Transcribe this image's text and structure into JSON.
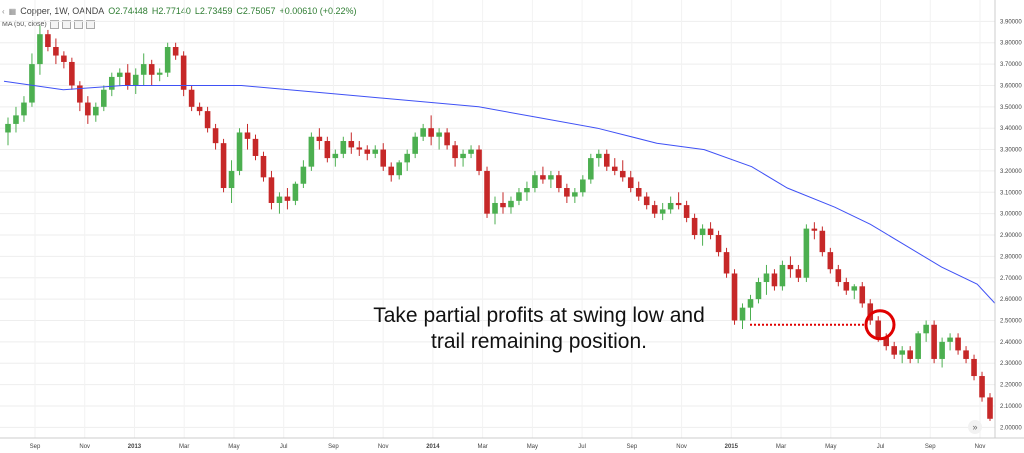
{
  "header": {
    "symbol": "Copper, 1W, OANDA",
    "open": "O2.74448",
    "high": "H2.77140",
    "low": "L2.73459",
    "close": "C2.75057",
    "change": "+0.00610 (+0.22%)",
    "ma_label": "MA (50, close)"
  },
  "annotation": {
    "line1": "Take partial profits at swing low and",
    "line2": "trail remaining position."
  },
  "colors": {
    "up": "#4caf50",
    "down": "#c62828",
    "ma": "#3f51f5",
    "annotation": "#e00000"
  },
  "chart_data": {
    "type": "candlestick",
    "title": "Copper, 1W, OANDA",
    "ylim": [
      1.95,
      4.0
    ],
    "y_ticks": [
      "3.90000",
      "3.80000",
      "3.70000",
      "3.60000",
      "3.50000",
      "3.40000",
      "3.30000",
      "3.20000",
      "3.10000",
      "3.00000",
      "2.90000",
      "2.80000",
      "2.70000",
      "2.60000",
      "2.50000",
      "2.40000",
      "2.30000",
      "2.20000",
      "2.10000",
      "2.00000"
    ],
    "x_ticks": [
      "Sep",
      "Nov",
      "2013",
      "Mar",
      "May",
      "Jul",
      "Sep",
      "Nov",
      "2014",
      "Mar",
      "May",
      "Jul",
      "Sep",
      "Nov",
      "2015",
      "Mar",
      "May",
      "Jul",
      "Sep",
      "Nov"
    ],
    "ma_series": {
      "name": "MA (50, close)",
      "points": [
        [
          0,
          3.62
        ],
        [
          10,
          3.58
        ],
        [
          20,
          3.6
        ],
        [
          40,
          3.6
        ],
        [
          60,
          3.55
        ],
        [
          80,
          3.5
        ],
        [
          90,
          3.45
        ],
        [
          100,
          3.4
        ],
        [
          110,
          3.33
        ],
        [
          118,
          3.3
        ],
        [
          126,
          3.22
        ],
        [
          132,
          3.12
        ],
        [
          140,
          3.03
        ],
        [
          146,
          2.95
        ],
        [
          152,
          2.85
        ],
        [
          158,
          2.75
        ],
        [
          164,
          2.67
        ],
        [
          167,
          2.58
        ]
      ]
    },
    "annotations": [
      {
        "text": "Take partial profits at swing low and trail remaining position.",
        "level": 2.48
      }
    ],
    "swing_low": 2.48,
    "candles": [
      [
        3.38,
        3.45,
        3.32,
        3.42
      ],
      [
        3.42,
        3.5,
        3.38,
        3.46
      ],
      [
        3.46,
        3.55,
        3.43,
        3.52
      ],
      [
        3.52,
        3.75,
        3.5,
        3.7
      ],
      [
        3.7,
        3.88,
        3.65,
        3.84
      ],
      [
        3.84,
        3.86,
        3.76,
        3.78
      ],
      [
        3.78,
        3.82,
        3.7,
        3.74
      ],
      [
        3.74,
        3.76,
        3.68,
        3.71
      ],
      [
        3.71,
        3.73,
        3.58,
        3.6
      ],
      [
        3.6,
        3.62,
        3.48,
        3.52
      ],
      [
        3.52,
        3.55,
        3.42,
        3.46
      ],
      [
        3.46,
        3.52,
        3.43,
        3.5
      ],
      [
        3.5,
        3.6,
        3.48,
        3.58
      ],
      [
        3.58,
        3.66,
        3.55,
        3.64
      ],
      [
        3.64,
        3.68,
        3.6,
        3.66
      ],
      [
        3.66,
        3.7,
        3.58,
        3.6
      ],
      [
        3.6,
        3.68,
        3.56,
        3.65
      ],
      [
        3.65,
        3.75,
        3.6,
        3.7
      ],
      [
        3.7,
        3.72,
        3.6,
        3.65
      ],
      [
        3.65,
        3.68,
        3.62,
        3.66
      ],
      [
        3.66,
        3.8,
        3.64,
        3.78
      ],
      [
        3.78,
        3.8,
        3.72,
        3.74
      ],
      [
        3.74,
        3.76,
        3.55,
        3.58
      ],
      [
        3.58,
        3.6,
        3.48,
        3.5
      ],
      [
        3.5,
        3.52,
        3.46,
        3.48
      ],
      [
        3.48,
        3.5,
        3.38,
        3.4
      ],
      [
        3.4,
        3.42,
        3.3,
        3.33
      ],
      [
        3.33,
        3.35,
        3.1,
        3.12
      ],
      [
        3.12,
        3.25,
        3.05,
        3.2
      ],
      [
        3.2,
        3.4,
        3.18,
        3.38
      ],
      [
        3.38,
        3.42,
        3.3,
        3.35
      ],
      [
        3.35,
        3.37,
        3.25,
        3.27
      ],
      [
        3.27,
        3.29,
        3.15,
        3.17
      ],
      [
        3.17,
        3.2,
        3.02,
        3.05
      ],
      [
        3.05,
        3.1,
        3.0,
        3.08
      ],
      [
        3.08,
        3.12,
        3.02,
        3.06
      ],
      [
        3.06,
        3.15,
        3.04,
        3.14
      ],
      [
        3.14,
        3.25,
        3.12,
        3.22
      ],
      [
        3.22,
        3.38,
        3.2,
        3.36
      ],
      [
        3.36,
        3.4,
        3.3,
        3.34
      ],
      [
        3.34,
        3.36,
        3.24,
        3.26
      ],
      [
        3.26,
        3.3,
        3.22,
        3.28
      ],
      [
        3.28,
        3.36,
        3.26,
        3.34
      ],
      [
        3.34,
        3.38,
        3.28,
        3.31
      ],
      [
        3.31,
        3.34,
        3.27,
        3.3
      ],
      [
        3.3,
        3.32,
        3.25,
        3.28
      ],
      [
        3.28,
        3.32,
        3.26,
        3.3
      ],
      [
        3.3,
        3.33,
        3.2,
        3.22
      ],
      [
        3.22,
        3.24,
        3.15,
        3.18
      ],
      [
        3.18,
        3.25,
        3.16,
        3.24
      ],
      [
        3.24,
        3.3,
        3.2,
        3.28
      ],
      [
        3.28,
        3.38,
        3.26,
        3.36
      ],
      [
        3.36,
        3.42,
        3.34,
        3.4
      ],
      [
        3.4,
        3.46,
        3.32,
        3.36
      ],
      [
        3.36,
        3.4,
        3.3,
        3.38
      ],
      [
        3.38,
        3.4,
        3.3,
        3.32
      ],
      [
        3.32,
        3.34,
        3.22,
        3.26
      ],
      [
        3.26,
        3.3,
        3.22,
        3.28
      ],
      [
        3.28,
        3.32,
        3.26,
        3.3
      ],
      [
        3.3,
        3.32,
        3.18,
        3.2
      ],
      [
        3.2,
        3.22,
        2.98,
        3.0
      ],
      [
        3.0,
        3.08,
        2.95,
        3.05
      ],
      [
        3.05,
        3.1,
        3.0,
        3.03
      ],
      [
        3.03,
        3.08,
        3.0,
        3.06
      ],
      [
        3.06,
        3.12,
        3.04,
        3.1
      ],
      [
        3.1,
        3.15,
        3.06,
        3.12
      ],
      [
        3.12,
        3.2,
        3.1,
        3.18
      ],
      [
        3.18,
        3.22,
        3.14,
        3.16
      ],
      [
        3.16,
        3.2,
        3.12,
        3.18
      ],
      [
        3.18,
        3.2,
        3.1,
        3.12
      ],
      [
        3.12,
        3.14,
        3.05,
        3.08
      ],
      [
        3.08,
        3.12,
        3.05,
        3.1
      ],
      [
        3.1,
        3.18,
        3.08,
        3.16
      ],
      [
        3.16,
        3.28,
        3.14,
        3.26
      ],
      [
        3.26,
        3.3,
        3.22,
        3.28
      ],
      [
        3.28,
        3.3,
        3.2,
        3.22
      ],
      [
        3.22,
        3.26,
        3.18,
        3.2
      ],
      [
        3.2,
        3.25,
        3.15,
        3.17
      ],
      [
        3.17,
        3.2,
        3.1,
        3.12
      ],
      [
        3.12,
        3.15,
        3.06,
        3.08
      ],
      [
        3.08,
        3.1,
        3.02,
        3.04
      ],
      [
        3.04,
        3.06,
        2.98,
        3.0
      ],
      [
        3.0,
        3.05,
        2.97,
        3.02
      ],
      [
        3.02,
        3.08,
        3.0,
        3.05
      ],
      [
        3.05,
        3.1,
        3.02,
        3.04
      ],
      [
        3.04,
        3.06,
        2.96,
        2.98
      ],
      [
        2.98,
        3.0,
        2.88,
        2.9
      ],
      [
        2.9,
        2.95,
        2.85,
        2.93
      ],
      [
        2.93,
        2.96,
        2.88,
        2.9
      ],
      [
        2.9,
        2.92,
        2.8,
        2.82
      ],
      [
        2.82,
        2.84,
        2.7,
        2.72
      ],
      [
        2.72,
        2.74,
        2.48,
        2.5
      ],
      [
        2.5,
        2.58,
        2.46,
        2.56
      ],
      [
        2.56,
        2.62,
        2.5,
        2.6
      ],
      [
        2.6,
        2.7,
        2.58,
        2.68
      ],
      [
        2.68,
        2.76,
        2.62,
        2.72
      ],
      [
        2.72,
        2.74,
        2.64,
        2.66
      ],
      [
        2.66,
        2.78,
        2.64,
        2.76
      ],
      [
        2.76,
        2.8,
        2.7,
        2.74
      ],
      [
        2.74,
        2.76,
        2.68,
        2.7
      ],
      [
        2.7,
        2.95,
        2.68,
        2.93
      ],
      [
        2.93,
        2.96,
        2.88,
        2.92
      ],
      [
        2.92,
        2.94,
        2.8,
        2.82
      ],
      [
        2.82,
        2.84,
        2.72,
        2.74
      ],
      [
        2.74,
        2.76,
        2.66,
        2.68
      ],
      [
        2.68,
        2.7,
        2.62,
        2.64
      ],
      [
        2.64,
        2.67,
        2.6,
        2.66
      ],
      [
        2.66,
        2.68,
        2.56,
        2.58
      ],
      [
        2.58,
        2.6,
        2.48,
        2.5
      ],
      [
        2.5,
        2.52,
        2.4,
        2.42
      ],
      [
        2.42,
        2.44,
        2.36,
        2.38
      ],
      [
        2.38,
        2.4,
        2.32,
        2.34
      ],
      [
        2.34,
        2.38,
        2.3,
        2.36
      ],
      [
        2.36,
        2.38,
        2.3,
        2.32
      ],
      [
        2.32,
        2.45,
        2.3,
        2.44
      ],
      [
        2.44,
        2.5,
        2.4,
        2.48
      ],
      [
        2.48,
        2.5,
        2.3,
        2.32
      ],
      [
        2.32,
        2.42,
        2.28,
        2.4
      ],
      [
        2.4,
        2.44,
        2.36,
        2.42
      ],
      [
        2.42,
        2.44,
        2.34,
        2.36
      ],
      [
        2.36,
        2.38,
        2.3,
        2.32
      ],
      [
        2.32,
        2.34,
        2.22,
        2.24
      ],
      [
        2.24,
        2.26,
        2.12,
        2.14
      ],
      [
        2.14,
        2.16,
        2.03,
        2.04
      ]
    ]
  }
}
